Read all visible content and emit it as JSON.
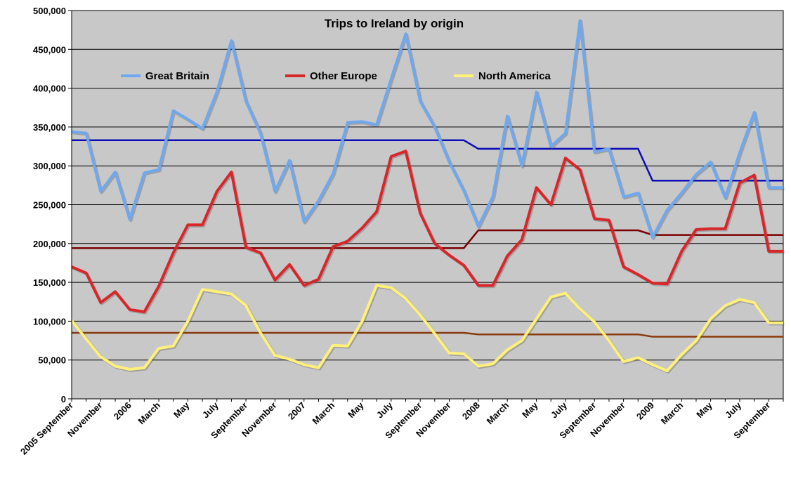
{
  "chart_data": {
    "type": "line",
    "title": "Trips to Ireland by origin",
    "xlabel": "",
    "ylabel": "",
    "ylim": [
      0,
      500000
    ],
    "yticks": [
      "0",
      "50,000",
      "100,000",
      "150,000",
      "200,000",
      "250,000",
      "300,000",
      "350,000",
      "400,000",
      "450,000",
      "500,000"
    ],
    "xtick_labels": [
      "2005 September",
      "November",
      "2006",
      "March",
      "May",
      "July",
      "September",
      "November",
      "2007",
      "March",
      "May",
      "July",
      "September",
      "November",
      "2008",
      "March",
      "May",
      "July",
      "September",
      "November",
      "2009",
      "March",
      "May",
      "July",
      "September"
    ],
    "x": [
      "2005-09",
      "2005-10",
      "2005-11",
      "2005-12",
      "2006-01",
      "2006-02",
      "2006-03",
      "2006-04",
      "2006-05",
      "2006-06",
      "2006-07",
      "2006-08",
      "2006-09",
      "2006-10",
      "2006-11",
      "2006-12",
      "2007-01",
      "2007-02",
      "2007-03",
      "2007-04",
      "2007-05",
      "2007-06",
      "2007-07",
      "2007-08",
      "2007-09",
      "2007-10",
      "2007-11",
      "2007-12",
      "2008-01",
      "2008-02",
      "2008-03",
      "2008-04",
      "2008-05",
      "2008-06",
      "2008-07",
      "2008-08",
      "2008-09",
      "2008-10",
      "2008-11",
      "2008-12",
      "2009-01",
      "2009-02",
      "2009-03",
      "2009-04",
      "2009-05",
      "2009-06",
      "2009-07",
      "2009-08",
      "2009-09",
      "2009-10"
    ],
    "grid": true,
    "legend_position": "top",
    "series": [
      {
        "name": "Great Britain",
        "color": "#6fa8ee",
        "values": [
          344000,
          342000,
          267000,
          292000,
          231000,
          291000,
          295000,
          371000,
          360000,
          348000,
          395000,
          461000,
          383000,
          342000,
          267000,
          307000,
          228000,
          255000,
          290000,
          356000,
          357000,
          353000,
          412000,
          470000,
          383000,
          350000,
          305000,
          268000,
          222000,
          260000,
          364000,
          300000,
          395000,
          325000,
          342000,
          487000,
          318000,
          322000,
          260000,
          265000,
          208000,
          243000,
          265000,
          289000,
          305000,
          259000,
          317000,
          369000,
          272000,
          272000
        ]
      },
      {
        "name": "Other Europe",
        "color": "#d8262b",
        "values": [
          170000,
          162000,
          124000,
          138000,
          115000,
          112000,
          145000,
          188000,
          224000,
          224000,
          267000,
          292000,
          195000,
          188000,
          153000,
          173000,
          146000,
          154000,
          196000,
          203000,
          220000,
          241000,
          312000,
          319000,
          239000,
          200000,
          185000,
          172000,
          146000,
          146000,
          184000,
          205000,
          272000,
          250000,
          310000,
          295000,
          232000,
          230000,
          170000,
          160000,
          149000,
          148000,
          190000,
          218000,
          219000,
          219000,
          278000,
          288000,
          190000,
          190000
        ]
      },
      {
        "name": "North America",
        "color": "#fff07a",
        "values": [
          101000,
          77000,
          54000,
          42000,
          38000,
          40000,
          65000,
          68000,
          100000,
          141000,
          138000,
          135000,
          120000,
          85000,
          56000,
          51000,
          44000,
          40000,
          69000,
          68000,
          100000,
          146000,
          143000,
          129000,
          108000,
          84000,
          59000,
          58000,
          42000,
          45000,
          63000,
          75000,
          103000,
          131000,
          136000,
          116000,
          99000,
          75000,
          48000,
          53000,
          44000,
          36000,
          57000,
          75000,
          103000,
          120000,
          128000,
          124000,
          98000,
          98000
        ]
      },
      {
        "name": "",
        "color": "#0b0bb6",
        "values": [
          333000,
          333000,
          333000,
          333000,
          333000,
          333000,
          333000,
          333000,
          333000,
          333000,
          333000,
          333000,
          333000,
          333000,
          333000,
          333000,
          333000,
          333000,
          333000,
          333000,
          333000,
          333000,
          333000,
          333000,
          333000,
          333000,
          333000,
          333000,
          322000,
          322000,
          322000,
          322000,
          322000,
          322000,
          322000,
          322000,
          322000,
          322000,
          322000,
          322000,
          281000,
          281000,
          281000,
          281000,
          281000,
          281000,
          281000,
          281000,
          281000,
          281000
        ]
      },
      {
        "name": "",
        "color": "#7a0000",
        "values": [
          194000,
          194000,
          194000,
          194000,
          194000,
          194000,
          194000,
          194000,
          194000,
          194000,
          194000,
          194000,
          194000,
          194000,
          194000,
          194000,
          194000,
          194000,
          194000,
          194000,
          194000,
          194000,
          194000,
          194000,
          194000,
          194000,
          194000,
          194000,
          217000,
          217000,
          217000,
          217000,
          217000,
          217000,
          217000,
          217000,
          217000,
          217000,
          217000,
          217000,
          211000,
          211000,
          211000,
          211000,
          211000,
          211000,
          211000,
          211000,
          211000,
          211000
        ]
      },
      {
        "name": "",
        "color": "#8a3a0c",
        "values": [
          85000,
          85000,
          85000,
          85000,
          85000,
          85000,
          85000,
          85000,
          85000,
          85000,
          85000,
          85000,
          85000,
          85000,
          85000,
          85000,
          85000,
          85000,
          85000,
          85000,
          85000,
          85000,
          85000,
          85000,
          85000,
          85000,
          85000,
          85000,
          83000,
          83000,
          83000,
          83000,
          83000,
          83000,
          83000,
          83000,
          83000,
          83000,
          83000,
          83000,
          80000,
          80000,
          80000,
          80000,
          80000,
          80000,
          80000,
          80000,
          80000,
          80000
        ]
      }
    ]
  },
  "colors": {
    "plot_background": "#c8c8c8",
    "gridline": "#000000"
  }
}
